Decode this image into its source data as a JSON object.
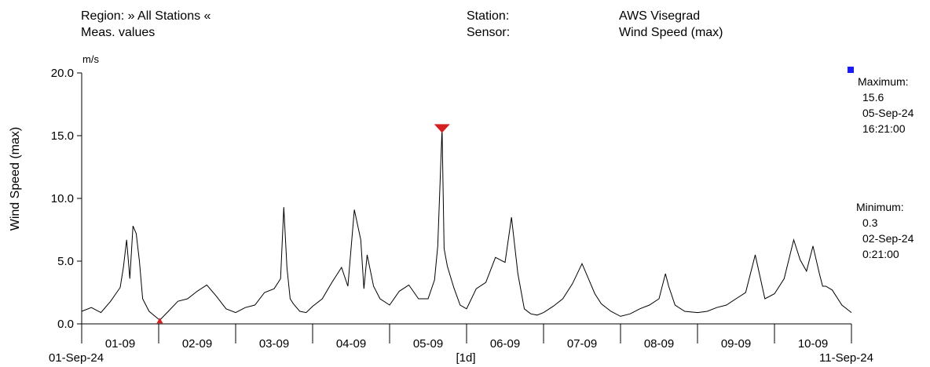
{
  "header": {
    "region_label": "Region: » All Stations «",
    "meas_label": "Meas. values",
    "station_key": "Station:",
    "station_value": "AWS Visegrad",
    "sensor_key": "Sensor:",
    "sensor_value": "Wind Speed (max)"
  },
  "stats": {
    "max_label": "Maximum:",
    "max_value": "15.6",
    "max_date": "05-Sep-24",
    "max_time": "16:21:00",
    "min_label": "Minimum:",
    "min_value": "0.3",
    "min_date": "02-Sep-24",
    "min_time": "0:21:00"
  },
  "colors": {
    "line": "#000000",
    "marker": "#d42020",
    "legend_square": "#1a1aff"
  },
  "chart_data": {
    "type": "line",
    "title": "",
    "ylabel": "Wind Speed (max)",
    "unit": "m/s",
    "ylim": [
      0,
      20
    ],
    "yticks": [
      "0.0",
      "5.0",
      "10.0",
      "15.0",
      "20.0"
    ],
    "xlim": [
      "01-Sep-24",
      "11-Sep-24"
    ],
    "x_start_label": "01-Sep-24",
    "x_end_label": "11-Sep-24",
    "interval_label": "[1d]",
    "x_tick_labels": [
      "01-09",
      "02-09",
      "03-09",
      "04-09",
      "05-09",
      "06-09",
      "07-09",
      "08-09",
      "09-09",
      "10-09"
    ],
    "grid": false,
    "series": [
      {
        "x": [
          "01-Sep 00:00",
          "01-Sep 03:00",
          "01-Sep 06:00",
          "01-Sep 09:00",
          "01-Sep 12:00",
          "01-Sep 13:00",
          "01-Sep 14:00",
          "01-Sep 15:00",
          "01-Sep 16:00",
          "01-Sep 17:00",
          "01-Sep 18:00",
          "01-Sep 19:00",
          "01-Sep 21:00",
          "02-Sep 00:21",
          "02-Sep 03:00",
          "02-Sep 06:00",
          "02-Sep 09:00",
          "02-Sep 12:00",
          "02-Sep 15:00",
          "02-Sep 18:00",
          "02-Sep 21:00",
          "03-Sep 00:00",
          "03-Sep 03:00",
          "03-Sep 06:00",
          "03-Sep 09:00",
          "03-Sep 12:00",
          "03-Sep 14:00",
          "03-Sep 15:00",
          "03-Sep 16:00",
          "03-Sep 17:00",
          "03-Sep 18:00",
          "03-Sep 20:00",
          "03-Sep 22:00",
          "04-Sep 00:00",
          "04-Sep 03:00",
          "04-Sep 06:00",
          "04-Sep 09:00",
          "04-Sep 11:00",
          "04-Sep 13:00",
          "04-Sep 15:00",
          "04-Sep 16:00",
          "04-Sep 17:00",
          "04-Sep 19:00",
          "04-Sep 21:00",
          "05-Sep 00:00",
          "05-Sep 03:00",
          "05-Sep 06:00",
          "05-Sep 09:00",
          "05-Sep 12:00",
          "05-Sep 14:00",
          "05-Sep 15:00",
          "05-Sep 16:21",
          "05-Sep 17:00",
          "05-Sep 18:00",
          "05-Sep 20:00",
          "05-Sep 22:00",
          "06-Sep 00:00",
          "06-Sep 03:00",
          "06-Sep 06:00",
          "06-Sep 09:00",
          "06-Sep 12:00",
          "06-Sep 14:00",
          "06-Sep 16:00",
          "06-Sep 18:00",
          "06-Sep 20:00",
          "06-Sep 22:00",
          "07-Sep 00:00",
          "07-Sep 03:00",
          "07-Sep 06:00",
          "07-Sep 09:00",
          "07-Sep 12:00",
          "07-Sep 14:00",
          "07-Sep 16:00",
          "07-Sep 18:00",
          "07-Sep 21:00",
          "08-Sep 00:00",
          "08-Sep 03:00",
          "08-Sep 06:00",
          "08-Sep 09:00",
          "08-Sep 12:00",
          "08-Sep 14:00",
          "08-Sep 15:00",
          "08-Sep 17:00",
          "08-Sep 20:00",
          "09-Sep 00:00",
          "09-Sep 03:00",
          "09-Sep 06:00",
          "09-Sep 09:00",
          "09-Sep 12:00",
          "09-Sep 15:00",
          "09-Sep 18:00",
          "09-Sep 21:00",
          "10-Sep 00:00",
          "10-Sep 03:00",
          "10-Sep 06:00",
          "10-Sep 08:00",
          "10-Sep 10:00",
          "10-Sep 12:00",
          "10-Sep 14:00",
          "10-Sep 15:00",
          "10-Sep 16:00",
          "10-Sep 18:00",
          "10-Sep 21:00",
          "11-Sep 00:00"
        ],
        "values": [
          1.0,
          1.3,
          0.9,
          1.8,
          2.9,
          4.5,
          6.7,
          3.6,
          7.8,
          7.2,
          5.0,
          2.0,
          1.0,
          0.3,
          1.0,
          1.8,
          2.0,
          2.6,
          3.1,
          2.2,
          1.2,
          0.9,
          1.3,
          1.5,
          2.5,
          2.8,
          3.6,
          9.3,
          4.5,
          2.0,
          1.6,
          1.0,
          0.9,
          1.4,
          2.0,
          3.3,
          4.5,
          3.0,
          9.1,
          6.7,
          2.8,
          5.5,
          3.0,
          2.0,
          1.5,
          2.6,
          3.1,
          2.0,
          2.0,
          3.5,
          6.2,
          15.6,
          6.0,
          4.6,
          2.9,
          1.5,
          1.2,
          2.8,
          3.3,
          5.3,
          4.9,
          8.5,
          4.0,
          1.2,
          0.8,
          0.7,
          0.9,
          1.4,
          2.0,
          3.2,
          4.8,
          3.6,
          2.4,
          1.6,
          1.0,
          0.6,
          0.8,
          1.2,
          1.5,
          2.0,
          4.0,
          3.0,
          1.5,
          1.0,
          0.9,
          1.0,
          1.3,
          1.5,
          2.0,
          2.5,
          5.5,
          2.0,
          2.4,
          3.6,
          6.7,
          5.1,
          4.2,
          6.2,
          4.0,
          3.0,
          3.0,
          2.7,
          1.5,
          0.9
        ]
      }
    ],
    "max_marker": {
      "x": "05-Sep 16:21",
      "value": 15.6
    },
    "min_marker": {
      "x": "02-Sep 00:21",
      "value": 0.3
    }
  }
}
